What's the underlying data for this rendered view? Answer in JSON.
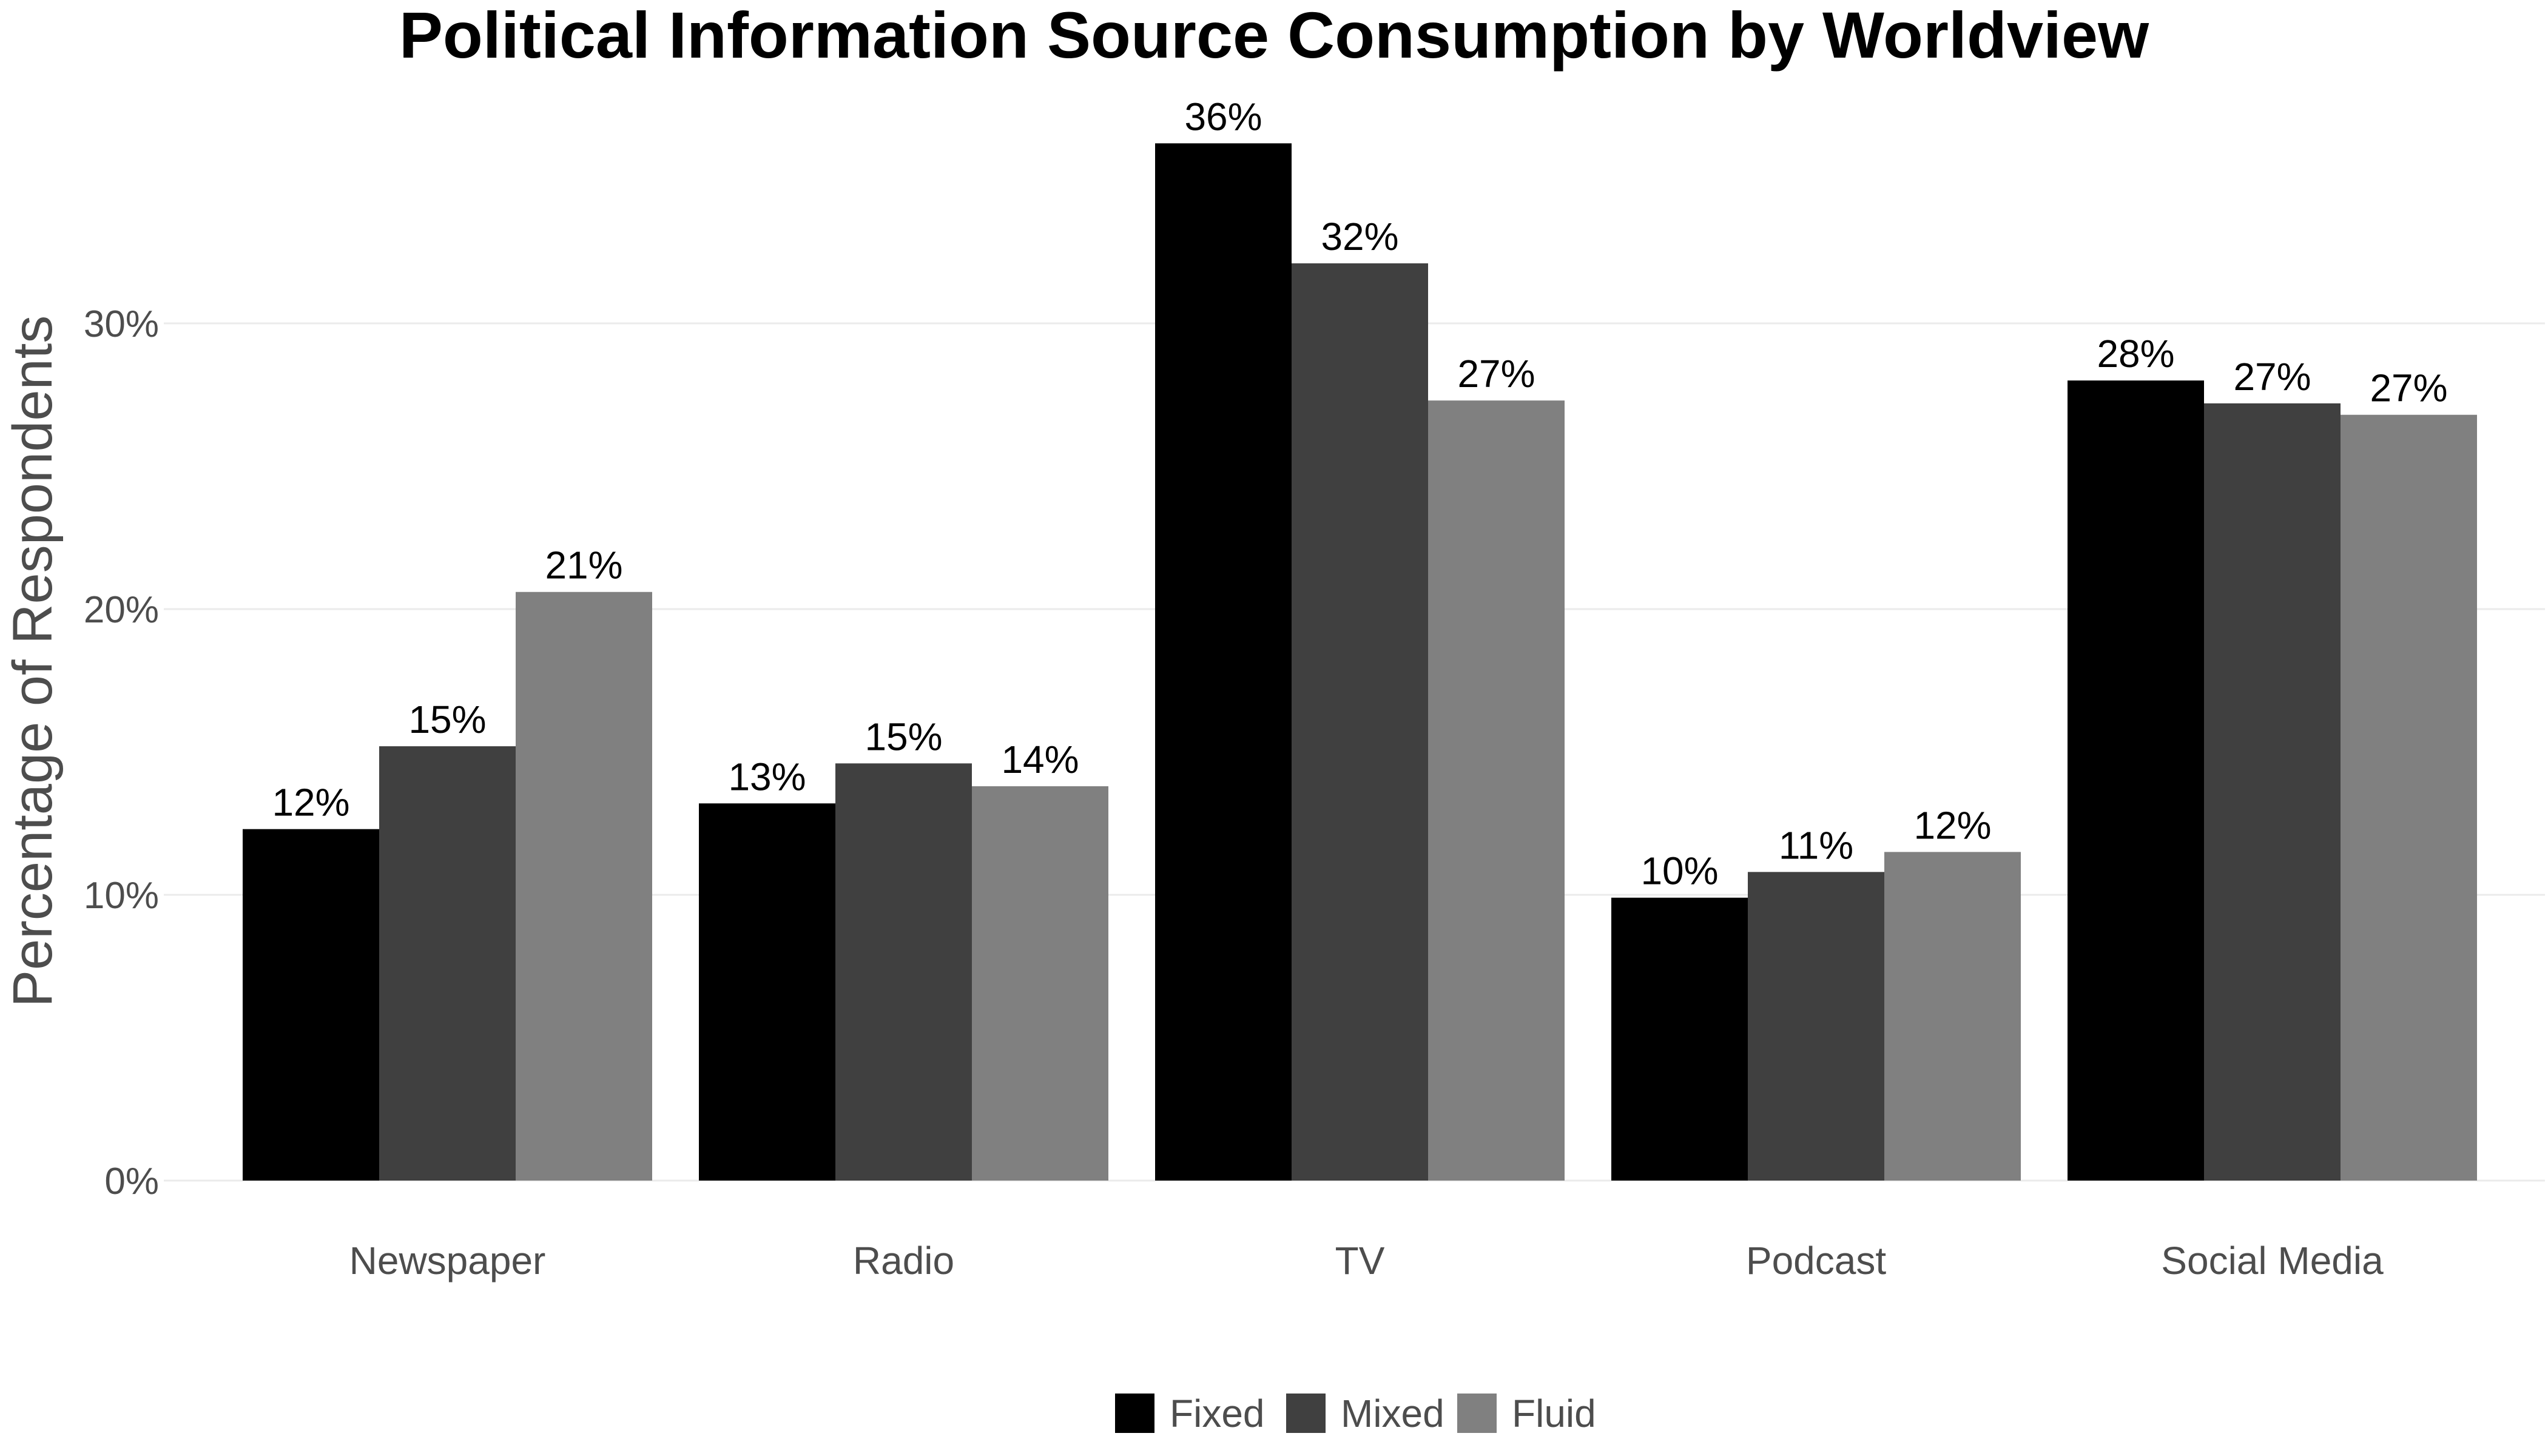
{
  "chart_data": {
    "type": "bar",
    "title": "Political Information Source Consumption by Worldview",
    "xlabel": "",
    "ylabel": "Percentage of Respondents",
    "categories": [
      "Newspaper",
      "Radio",
      "TV",
      "Podcast",
      "Social Media"
    ],
    "series": [
      {
        "name": "Fixed",
        "color": "#000000",
        "values": [
          12.3,
          13.2,
          36.3,
          9.9,
          28.0
        ],
        "labels": [
          "12%",
          "13%",
          "36%",
          "10%",
          "28%"
        ]
      },
      {
        "name": "Mixed",
        "color": "#404040",
        "values": [
          15.2,
          14.6,
          32.1,
          10.8,
          27.2
        ],
        "labels": [
          "15%",
          "15%",
          "32%",
          "11%",
          "27%"
        ]
      },
      {
        "name": "Fluid",
        "color": "#808080",
        "values": [
          20.6,
          13.8,
          27.3,
          11.5,
          26.8
        ],
        "labels": [
          "21%",
          "14%",
          "27%",
          "12%",
          "27%"
        ]
      }
    ],
    "ylim": [
      0,
      38
    ],
    "yticks": [
      0,
      10,
      20,
      30
    ],
    "ytick_labels": [
      "0%",
      "10%",
      "20%",
      "30%"
    ],
    "grid": true,
    "legend_position": "bottom"
  }
}
